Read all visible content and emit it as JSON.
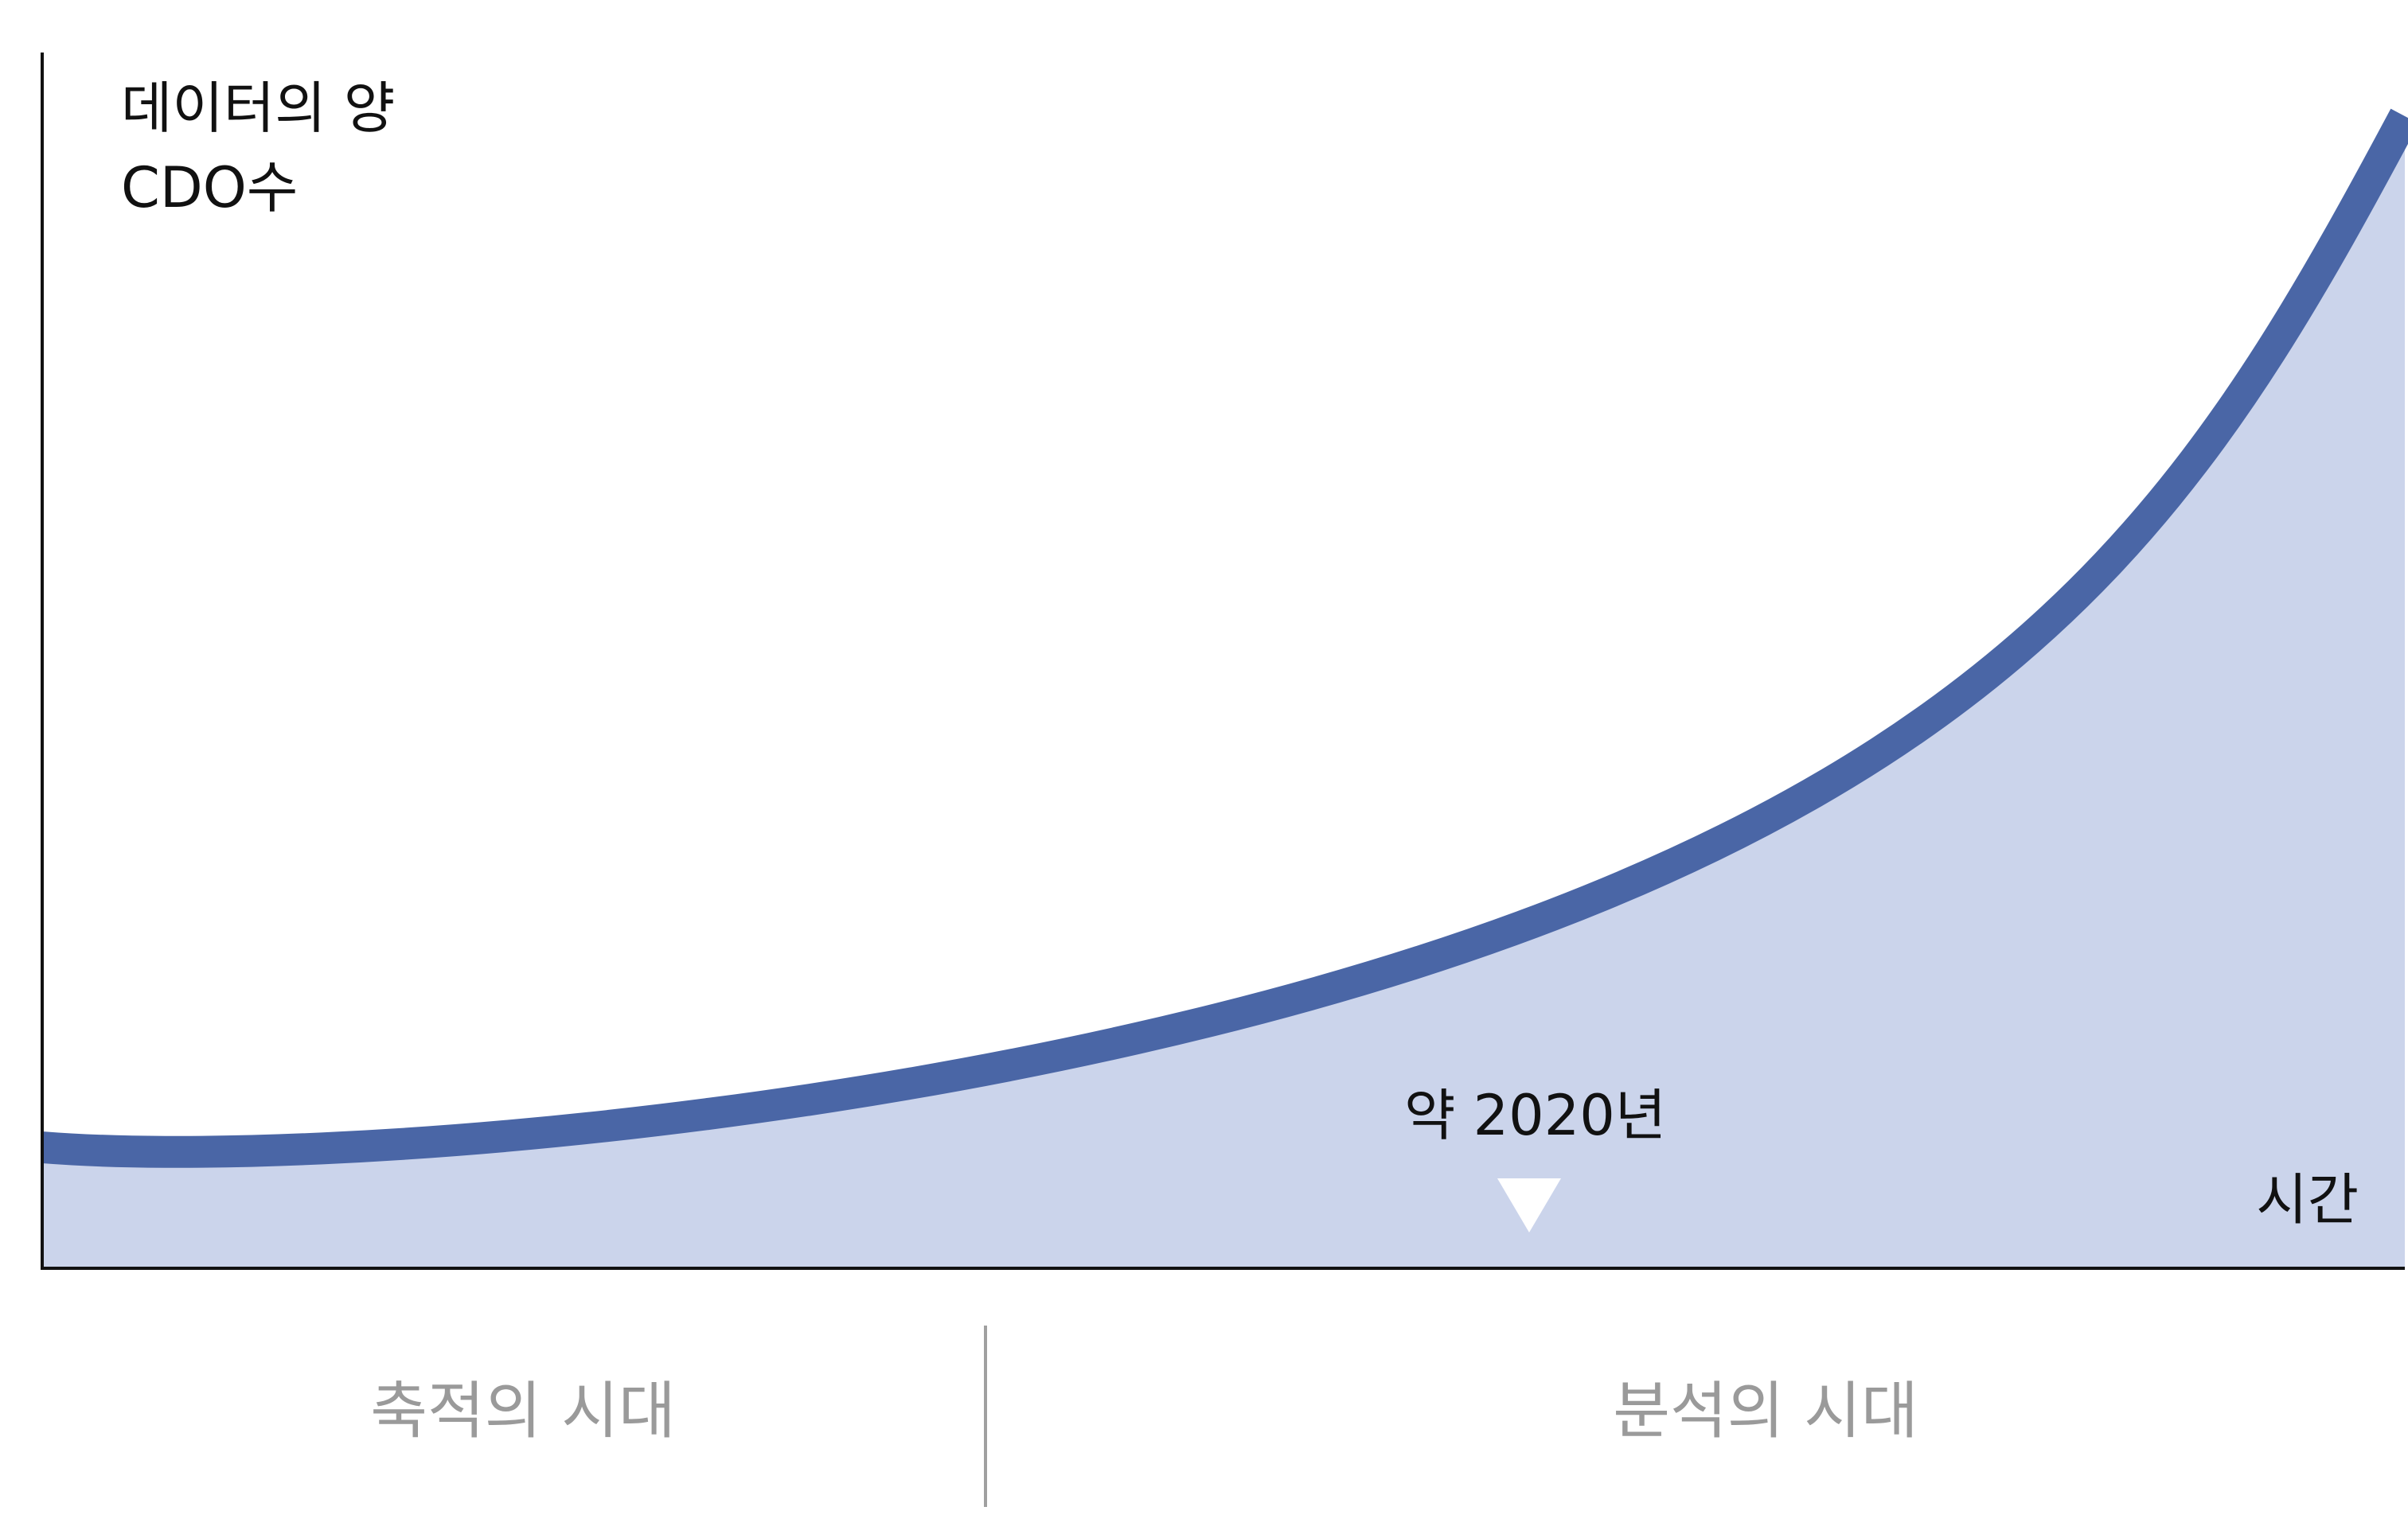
{
  "axis": {
    "y_label_lines": [
      "데이터의 양",
      "CDO수"
    ],
    "x_label": "시간"
  },
  "annotation": "약 2020년",
  "eras": [
    "축적의 시대",
    "분석의 시대"
  ]
}
